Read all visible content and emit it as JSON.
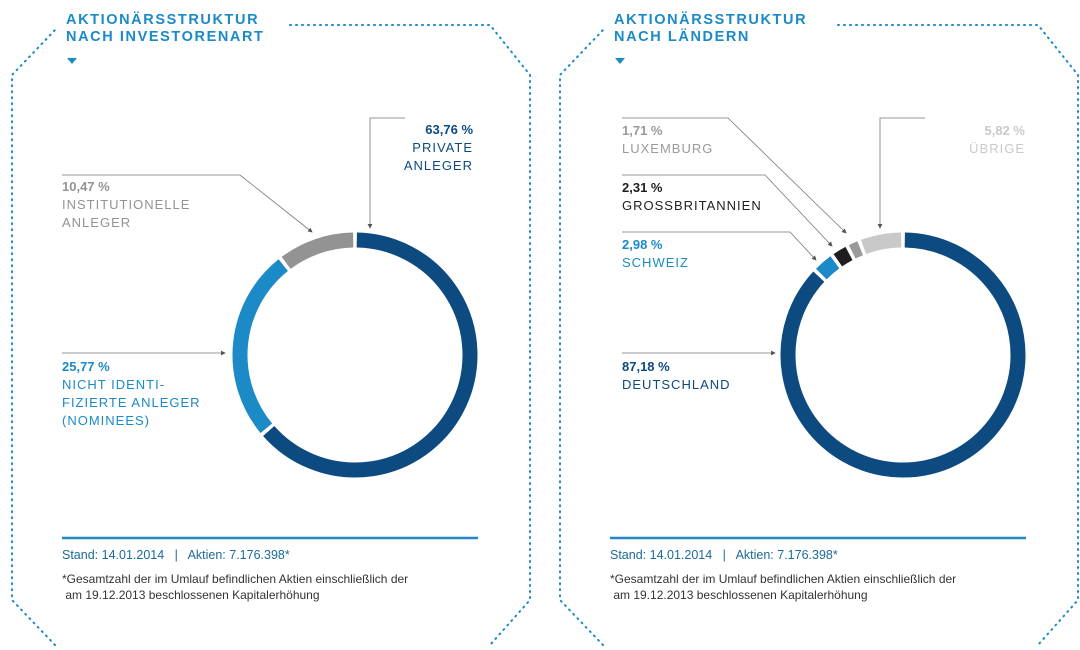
{
  "chart_data": [
    {
      "type": "donut",
      "title": "AKTIONÄRSSTRUKTUR\nNACH INVESTORENART",
      "categories": [
        "PRIVATE\nANLEGER",
        "NICHT IDENTI-\nFIZIERTE ANLEGER\n(NOMINEES)",
        "INSTITUTIONELLE\nANLEGER"
      ],
      "values": [
        63.76,
        25.77,
        10.47
      ],
      "value_labels": [
        "63,76 %",
        "25,77 %",
        "10,47 %"
      ],
      "colors": [
        "#0d4a80",
        "#1b8ac6",
        "#939393"
      ],
      "note": "Stand: 14.01.2014   |   Aktien: 7.176.398*",
      "footnote": "*Gesamtzahl der im Umlauf befindlichen Aktien einschließlich der\n am 19.12.2013 beschlossenen Kapitalerhöhung"
    },
    {
      "type": "donut",
      "title": "AKTIONÄRSSTRUKTUR\nNACH LÄNDERN",
      "categories": [
        "DEUTSCHLAND",
        "SCHWEIZ",
        "GROSSBRITANNIEN",
        "LUXEMBURG",
        "ÜBRIGE"
      ],
      "values": [
        87.18,
        2.98,
        2.31,
        1.71,
        5.82
      ],
      "value_labels": [
        "87,18 %",
        "2,98 %",
        "2,31 %",
        "1,71 %",
        "5,82 %"
      ],
      "colors": [
        "#0d4a80",
        "#1b8ac6",
        "#1e1e1e",
        "#9a9a9a",
        "#c9c9c9"
      ],
      "note": "Stand: 14.01.2014   |   Aktien: 7.176.398*",
      "footnote": "*Gesamtzahl der im Umlauf befindlichen Aktien einschließlich der\n am 19.12.2013 beschlossenen Kapitalerhöhung"
    }
  ]
}
